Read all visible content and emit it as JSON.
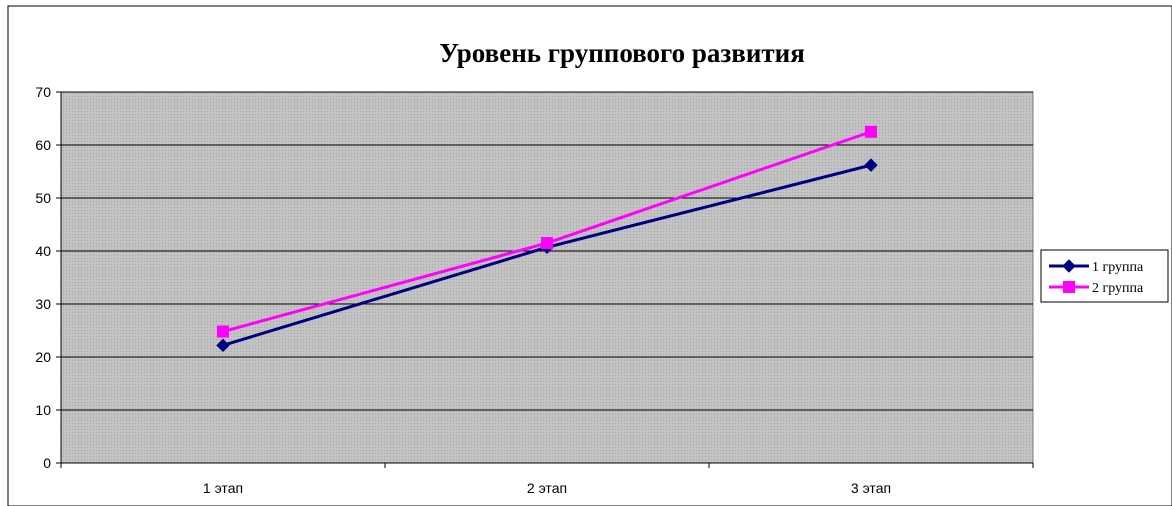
{
  "chart_data": {
    "type": "line",
    "title": "Уровень группового развития",
    "categories": [
      "1 этап",
      "2 этап",
      "3 этап"
    ],
    "ylim": [
      0,
      70
    ],
    "yticks": [
      0,
      10,
      20,
      30,
      40,
      50,
      60,
      70
    ],
    "grid": true,
    "legend": "right",
    "series": [
      {
        "name": "1 группа",
        "values": [
          22.2,
          40.7,
          56.2
        ],
        "color": "#000080",
        "marker": "diamond"
      },
      {
        "name": "2 группа",
        "values": [
          24.8,
          41.5,
          62.5
        ],
        "color": "#ff00ff",
        "marker": "square"
      }
    ],
    "plot_background": "#c0c0c0"
  }
}
